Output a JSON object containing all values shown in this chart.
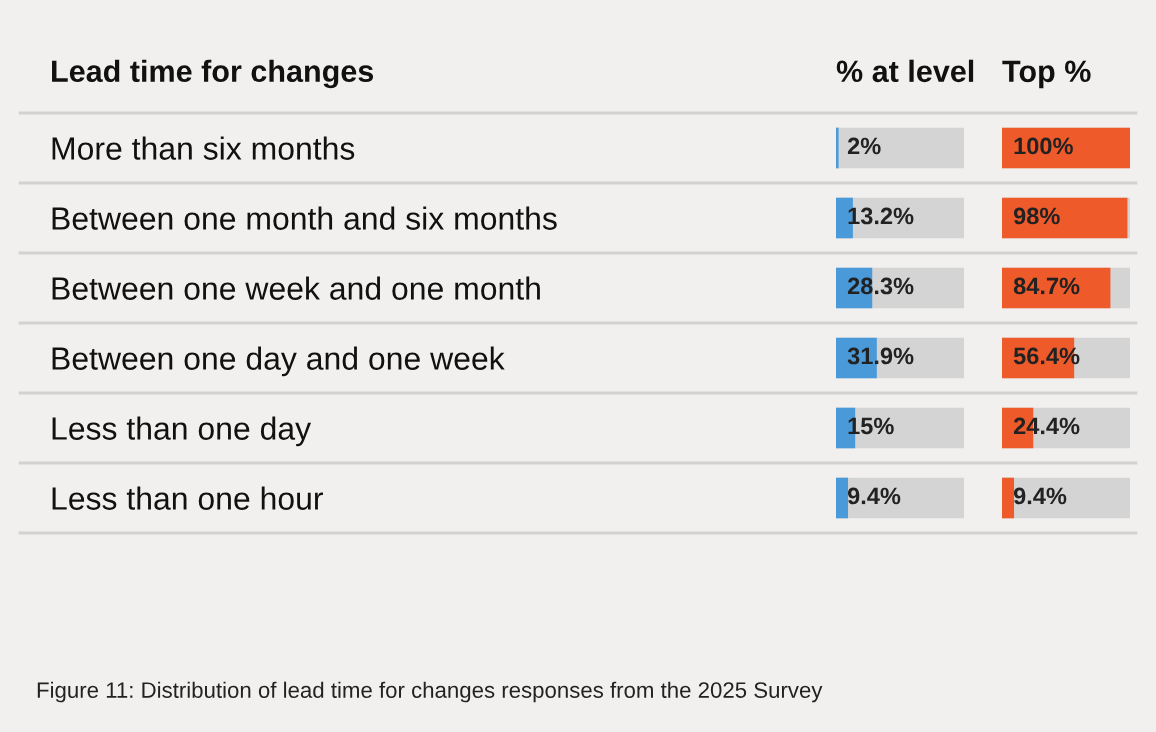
{
  "chart_data": [
    {
      "type": "bar",
      "orientation": "horizontal",
      "title": "% at level",
      "ylabel": "Lead time for changes",
      "categories": [
        "More than six months",
        "Between one month and six months",
        "Between one week and one month",
        "Between one day and one week",
        "Less than one day",
        "Less than one hour"
      ],
      "values": [
        2,
        13.2,
        28.3,
        31.9,
        15,
        9.4
      ],
      "color": "#4a9ad9",
      "value_labels": [
        "2%",
        "13.2%",
        "28.3%",
        "31.9%",
        "15%",
        "9.4%"
      ],
      "xlim": [
        0,
        100
      ],
      "bands": [
        {
          "axis": "x",
          "from": 0,
          "to": 100,
          "color": "#d4d4d4"
        }
      ],
      "annotations": [
        "Figure 11: Distribution of lead time for changes responses from the 2025 Survey"
      ]
    },
    {
      "type": "bar",
      "orientation": "horizontal",
      "title": "Top %",
      "categories": [
        null,
        null,
        null,
        null,
        null,
        null
      ],
      "values": [
        100,
        98,
        84.7,
        56.4,
        24.4,
        9.4
      ],
      "color": "#ee5a2a",
      "value_labels": [
        "100%",
        "98%",
        "84.7%",
        "56.4%",
        "24.4%",
        "9.4%"
      ],
      "xlim": [
        0,
        100
      ],
      "bands": [
        {
          "axis": "x",
          "from": 0,
          "to": 100,
          "color": "#d4d4d4"
        }
      ]
    }
  ]
}
